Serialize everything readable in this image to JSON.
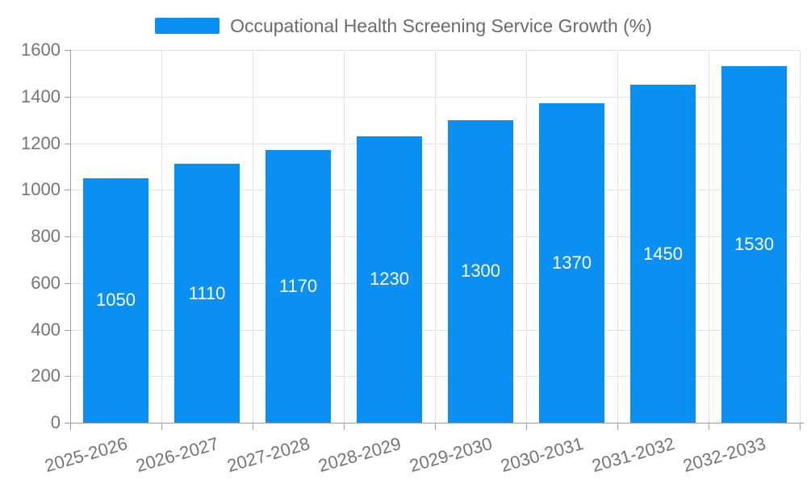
{
  "legend": {
    "label": "Occupational Health Screening Service Growth (%)"
  },
  "chart_data": {
    "type": "bar",
    "title": "Occupational Health Screening Service Growth (%)",
    "categories": [
      "2025-2026",
      "2026-2027",
      "2027-2028",
      "2028-2029",
      "2029-2030",
      "2030-2031",
      "2031-2032",
      "2032-2033"
    ],
    "values": [
      1050,
      1110,
      1170,
      1230,
      1300,
      1370,
      1450,
      1530
    ],
    "value_labels": [
      "1050",
      "1110",
      "1170",
      "1230",
      "1300",
      "1370",
      "1450",
      "1530"
    ],
    "xlabel": "",
    "ylabel": "",
    "ylim": [
      0,
      1600
    ],
    "yticks": [
      0,
      200,
      400,
      600,
      800,
      1000,
      1200,
      1400,
      1600
    ],
    "grid": true,
    "legend_position": "top-center",
    "x_label_rotation_deg": -16,
    "value_label_position": "inside-center",
    "colors": {
      "bar": "#0a90f2",
      "value_label": "#ffffff",
      "axis_label": "#757575",
      "title": "#6b6b6b",
      "gridline": "#e3e3e3",
      "axis_line": "#9e9e9e"
    }
  }
}
